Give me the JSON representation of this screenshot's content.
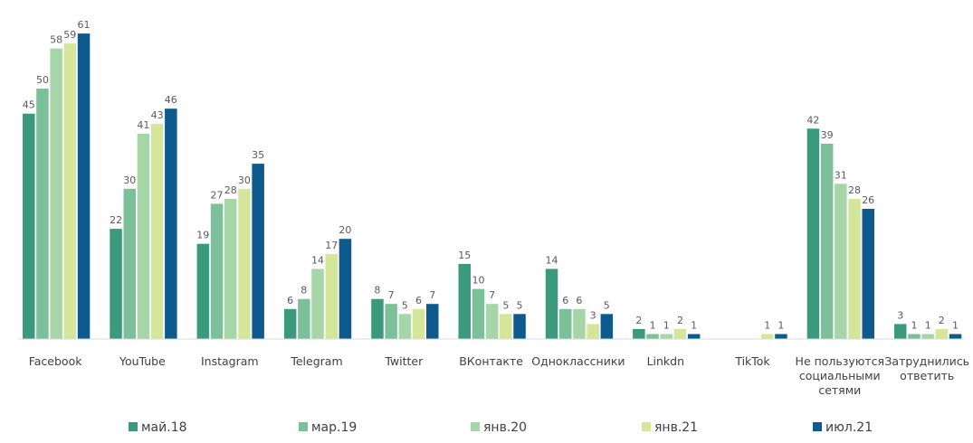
{
  "chart_data": {
    "type": "bar",
    "title": "",
    "xlabel": "",
    "ylabel": "",
    "ylim": [
      0,
      62
    ],
    "grid": false,
    "legend_position": "bottom",
    "categories": [
      [
        "Facebook"
      ],
      [
        "YouTube"
      ],
      [
        "Instagram"
      ],
      [
        "Telegram"
      ],
      [
        "Twitter"
      ],
      [
        "ВКонтакте"
      ],
      [
        "Одноклассники"
      ],
      [
        "Linkdn"
      ],
      [
        "TikTok"
      ],
      [
        "Не пользуются",
        "социальными",
        "сетями"
      ],
      [
        "Затруднились",
        "ответить"
      ]
    ],
    "series": [
      {
        "name": "май.18",
        "color": "#3a9a7b",
        "values": [
          45,
          22,
          19,
          6,
          8,
          15,
          14,
          2,
          null,
          42,
          3
        ]
      },
      {
        "name": "мар.19",
        "color": "#7cc09a",
        "values": [
          50,
          30,
          27,
          8,
          7,
          10,
          6,
          1,
          null,
          39,
          1
        ]
      },
      {
        "name": "янв.20",
        "color": "#a6d6a8",
        "values": [
          58,
          41,
          28,
          14,
          5,
          7,
          6,
          1,
          null,
          31,
          1
        ]
      },
      {
        "name": "янв.21",
        "color": "#d3e69a",
        "values": [
          59,
          43,
          30,
          17,
          6,
          5,
          3,
          2,
          1,
          28,
          2
        ]
      },
      {
        "name": "июл.21",
        "color": "#0d5a8e",
        "values": [
          61,
          46,
          35,
          20,
          7,
          5,
          5,
          1,
          1,
          26,
          1
        ]
      }
    ]
  }
}
